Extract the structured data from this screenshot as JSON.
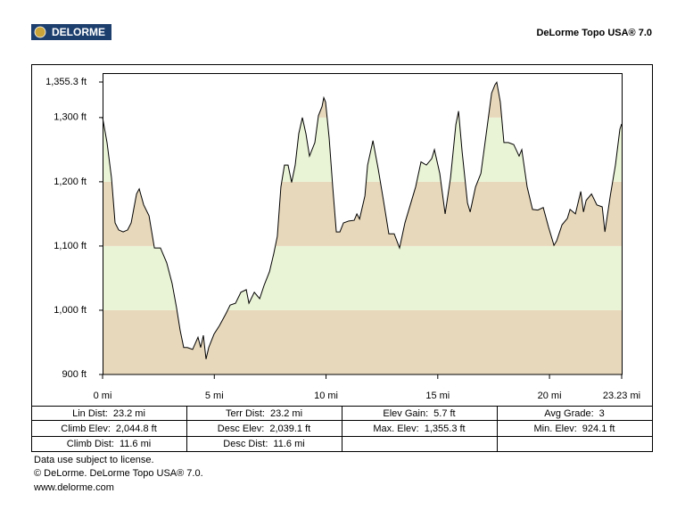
{
  "header": {
    "logo": "DELORME",
    "product": "DeLorme Topo USA® 7.0"
  },
  "chart_data": {
    "type": "area",
    "x": [
      0.0,
      0.2,
      0.4,
      0.56,
      0.72,
      0.92,
      1.12,
      1.28,
      1.52,
      1.64,
      1.84,
      2.08,
      2.32,
      2.59,
      2.87,
      3.11,
      3.31,
      3.47,
      3.63,
      3.79,
      4.03,
      4.27,
      4.39,
      4.51,
      4.63,
      4.75,
      4.99,
      5.23,
      5.51,
      5.71,
      5.95,
      6.19,
      6.43,
      6.55,
      6.79,
      7.03,
      7.23,
      7.47,
      7.66,
      7.82,
      7.98,
      8.14,
      8.3,
      8.46,
      8.62,
      8.78,
      8.94,
      9.1,
      9.26,
      9.5,
      9.66,
      9.82,
      9.9,
      9.98,
      10.14,
      10.3,
      10.46,
      10.62,
      10.78,
      11.02,
      11.26,
      11.38,
      11.5,
      11.74,
      11.86,
      12.1,
      12.34,
      12.57,
      12.81,
      13.05,
      13.29,
      13.53,
      13.77,
      14.01,
      14.25,
      14.49,
      14.73,
      14.85,
      15.09,
      15.33,
      15.57,
      15.81,
      15.93,
      16.09,
      16.33,
      16.45,
      16.69,
      16.93,
      17.17,
      17.41,
      17.56,
      17.64,
      17.8,
      17.96,
      18.16,
      18.4,
      18.64,
      18.76,
      19.0,
      19.24,
      19.48,
      19.72,
      19.96,
      20.2,
      20.32,
      20.56,
      20.8,
      20.92,
      21.16,
      21.4,
      21.52,
      21.64,
      21.88,
      22.12,
      22.36,
      22.48,
      22.72,
      22.95,
      23.15,
      23.23
    ],
    "values": [
      1300,
      1261,
      1206,
      1136,
      1125,
      1122,
      1125,
      1136,
      1181,
      1189,
      1164,
      1147,
      1097,
      1097,
      1074,
      1042,
      1004,
      969,
      942,
      942,
      939,
      958,
      942,
      961,
      924,
      942,
      963,
      976,
      994,
      1008,
      1011,
      1028,
      1032,
      1011,
      1028,
      1018,
      1039,
      1060,
      1088,
      1115,
      1192,
      1226,
      1226,
      1199,
      1226,
      1275,
      1300,
      1275,
      1240,
      1261,
      1303,
      1317,
      1331,
      1324,
      1268,
      1192,
      1122,
      1122,
      1136,
      1139,
      1140,
      1150,
      1142,
      1178,
      1226,
      1264,
      1219,
      1171,
      1119,
      1119,
      1097,
      1136,
      1164,
      1192,
      1231,
      1226,
      1236,
      1250,
      1213,
      1150,
      1206,
      1289,
      1310,
      1247,
      1167,
      1153,
      1192,
      1213,
      1275,
      1338,
      1351,
      1355,
      1324,
      1261,
      1261,
      1258,
      1240,
      1250,
      1192,
      1157,
      1156,
      1160,
      1129,
      1101,
      1108,
      1133,
      1143,
      1157,
      1150,
      1185,
      1153,
      1171,
      1181,
      1164,
      1161,
      1122,
      1178,
      1226,
      1282,
      1290
    ],
    "xlim": [
      0,
      23.23
    ],
    "xticks": [
      {
        "value": 0,
        "label": "0 mi"
      },
      {
        "value": 5,
        "label": "5 mi"
      },
      {
        "value": 10,
        "label": "10 mi"
      },
      {
        "value": 15,
        "label": "15 mi"
      },
      {
        "value": 20,
        "label": "20 mi"
      },
      {
        "value": 23.23,
        "label": "23.23 mi"
      }
    ],
    "ylim": [
      900,
      1355.3
    ],
    "yticks": [
      {
        "value": 900,
        "label": "900 ft"
      },
      {
        "value": 1000,
        "label": "1,000 ft"
      },
      {
        "value": 1100,
        "label": "1,100 ft"
      },
      {
        "value": 1200,
        "label": "1,200 ft"
      },
      {
        "value": 1300,
        "label": "1,300 ft"
      },
      {
        "value": 1355.3,
        "label": "1,355.3 ft"
      }
    ],
    "line_color": "#000000",
    "band_colors": [
      "#e8d8bb",
      "#e9f3d5"
    ]
  },
  "stats": {
    "rows": [
      [
        {
          "label": "Lin Dist:",
          "value": "23.2 mi"
        },
        {
          "label": "Terr Dist:",
          "value": "23.2 mi"
        },
        {
          "label": "Elev Gain:",
          "value": "5.7 ft"
        },
        {
          "label": "Avg Grade:",
          "value": "3"
        }
      ],
      [
        {
          "label": "Climb Elev:",
          "value": "2,044.8 ft"
        },
        {
          "label": "Desc Elev:",
          "value": "2,039.1 ft"
        },
        {
          "label": "Max. Elev:",
          "value": "1,355.3 ft"
        },
        {
          "label": "Min. Elev:",
          "value": "924.1 ft"
        }
      ],
      [
        {
          "label": "Climb Dist:",
          "value": "11.6 mi"
        },
        {
          "label": "Desc Dist:",
          "value": "11.6 mi"
        }
      ]
    ]
  },
  "footer": [
    "Data use subject to license.",
    "© DeLorme. DeLorme Topo USA® 7.0.",
    "www.delorme.com"
  ]
}
